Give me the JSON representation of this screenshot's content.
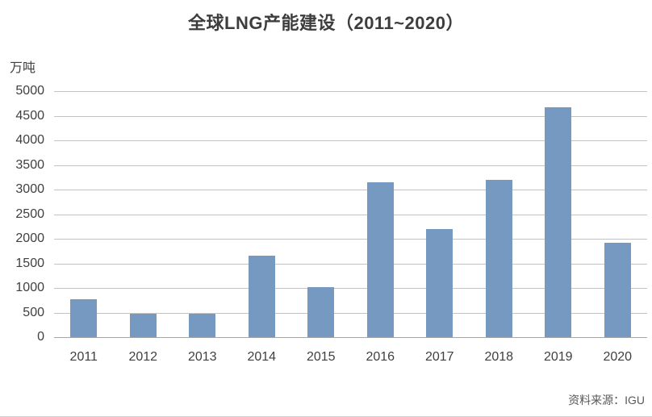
{
  "chart_data": {
    "type": "bar",
    "title": "全球LNG产能建设（2011~2020）",
    "unit_label": "万吨",
    "source": "资料来源：IGU",
    "categories": [
      "2011",
      "2012",
      "2013",
      "2014",
      "2015",
      "2016",
      "2017",
      "2018",
      "2019",
      "2020"
    ],
    "values": [
      775,
      475,
      470,
      1660,
      1020,
      3150,
      2200,
      3200,
      4670,
      1920
    ],
    "xlabel": "",
    "ylabel": "万吨",
    "ylim": [
      0,
      5000
    ],
    "ytick_step": 500,
    "yticks": [
      0,
      500,
      1000,
      1500,
      2000,
      2500,
      3000,
      3500,
      4000,
      4500,
      5000
    ],
    "grid": true,
    "legend_position": "none",
    "colors": {
      "bar": "#7699c2",
      "gridline": "#c3c3c3",
      "axis_line": "#a6a6a6",
      "tick_text": "#404040",
      "title_text": "#3d3d3d",
      "source_text": "#595959"
    }
  }
}
